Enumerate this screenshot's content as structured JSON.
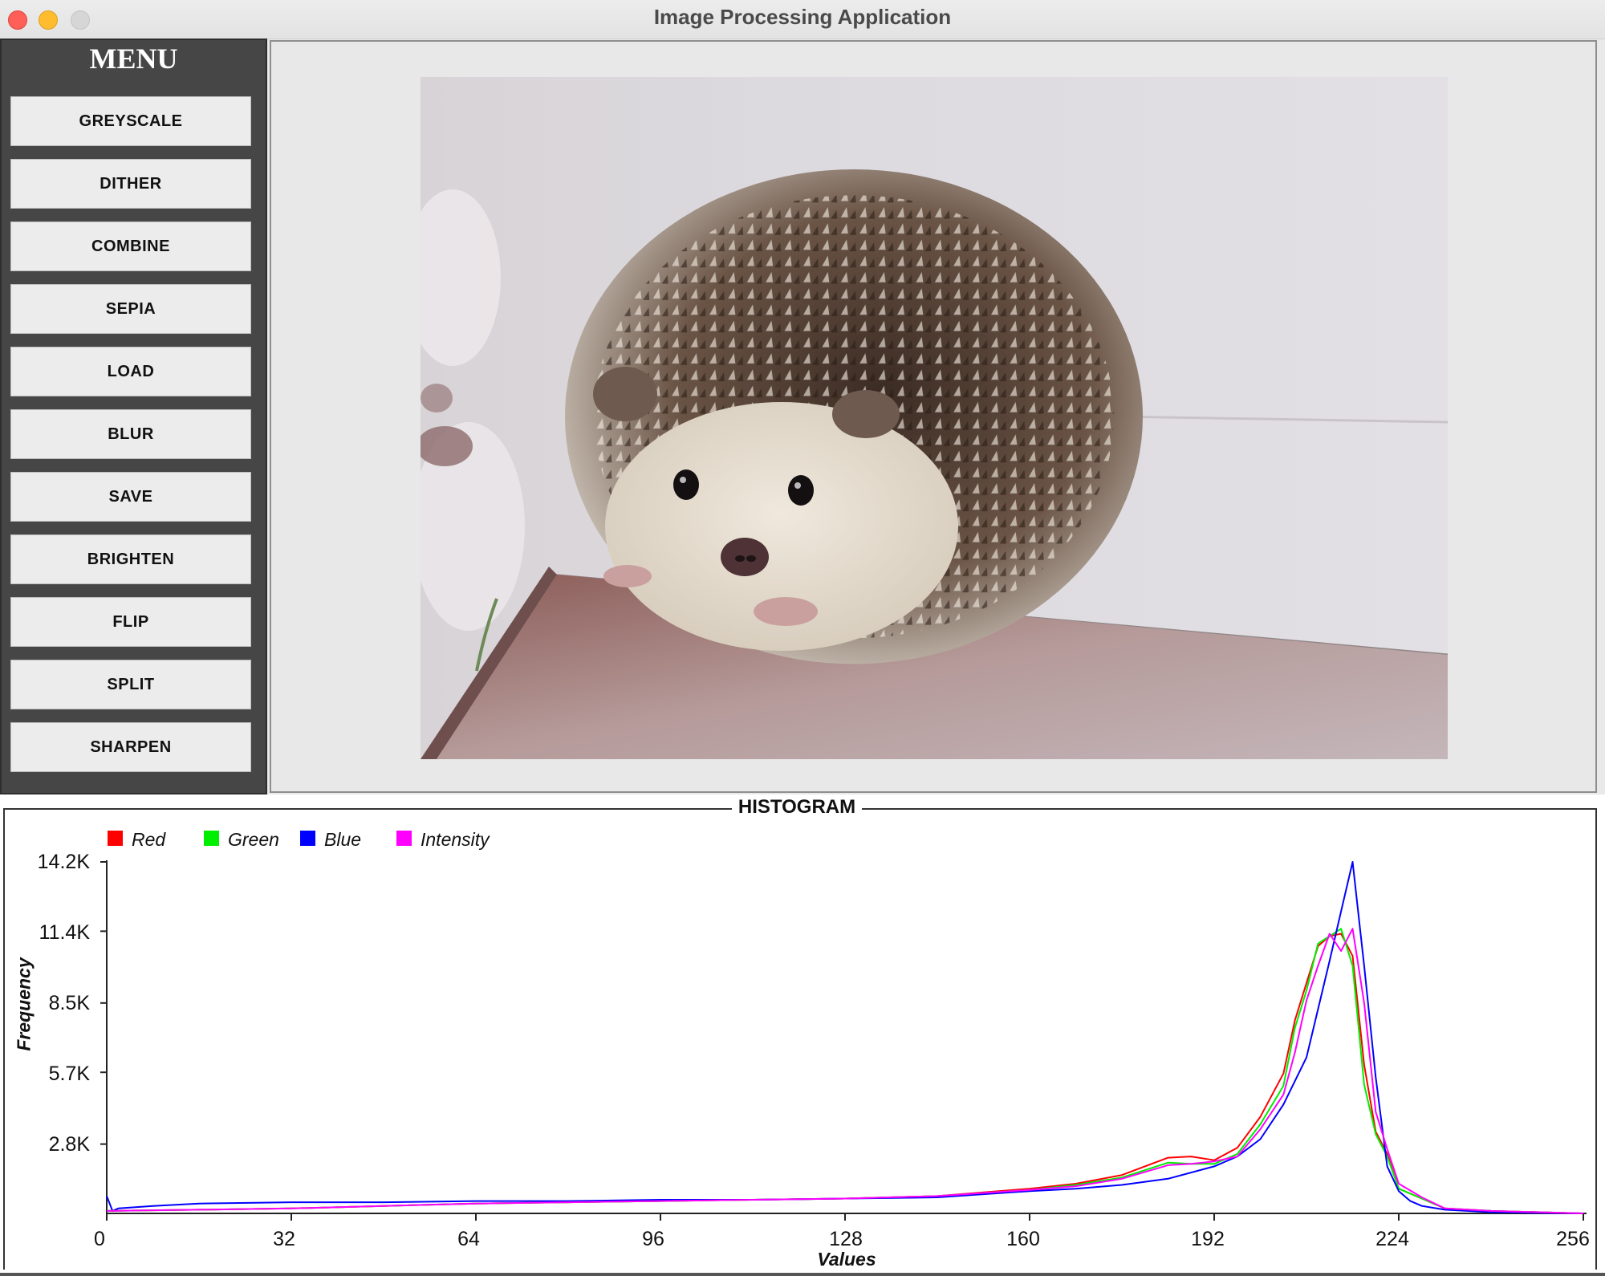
{
  "window": {
    "title": "Image Processing Application"
  },
  "menu": {
    "title": "MENU",
    "buttons": [
      "GREYSCALE",
      "DITHER",
      "COMBINE",
      "SEPIA",
      "LOAD",
      "BLUR",
      "SAVE",
      "BRIGHTEN",
      "FLIP",
      "SPLIT",
      "SHARPEN"
    ]
  },
  "histogram": {
    "title": "HISTOGRAM",
    "legend": [
      {
        "label": "Red",
        "color": "#ff0000"
      },
      {
        "label": "Green",
        "color": "#00ee00"
      },
      {
        "label": "Blue",
        "color": "#0000ff"
      },
      {
        "label": "Intensity",
        "color": "#ff00ff"
      }
    ],
    "yticks": [
      "14.2K",
      "11.4K",
      "8.5K",
      "5.7K",
      "2.8K"
    ],
    "xticks": [
      "0",
      "32",
      "64",
      "96",
      "128",
      "160",
      "192",
      "224",
      "256"
    ],
    "ylabel": "Frequency",
    "xlabel": "Values"
  },
  "chart_data": {
    "type": "line",
    "xlim": [
      0,
      256
    ],
    "ylim": [
      0,
      14200
    ],
    "series": [
      {
        "name": "Red",
        "color": "#ff0000",
        "x": [
          0,
          16,
          32,
          48,
          64,
          80,
          96,
          112,
          128,
          144,
          160,
          168,
          176,
          184,
          188,
          192,
          196,
          200,
          204,
          206,
          208,
          210,
          212,
          214,
          216,
          218,
          220,
          222,
          224,
          228,
          232,
          240,
          256
        ],
        "y": [
          100,
          150,
          200,
          300,
          400,
          450,
          500,
          550,
          600,
          700,
          1000,
          1200,
          1550,
          2250,
          2300,
          2150,
          2650,
          3900,
          5650,
          7800,
          9300,
          10800,
          11200,
          11300,
          10400,
          6000,
          3300,
          2400,
          1000,
          600,
          200,
          100,
          0
        ]
      },
      {
        "name": "Green",
        "color": "#00ee00",
        "x": [
          0,
          16,
          32,
          48,
          64,
          80,
          96,
          112,
          128,
          144,
          160,
          168,
          176,
          184,
          188,
          192,
          196,
          200,
          204,
          206,
          208,
          210,
          212,
          214,
          216,
          218,
          220,
          222,
          224,
          228,
          232,
          240,
          256
        ],
        "y": [
          100,
          150,
          200,
          300,
          400,
          450,
          500,
          550,
          600,
          700,
          950,
          1150,
          1450,
          2050,
          2000,
          2000,
          2400,
          3600,
          5150,
          7500,
          9000,
          10900,
          11200,
          11500,
          10000,
          5200,
          3200,
          2300,
          1000,
          600,
          200,
          100,
          0
        ]
      },
      {
        "name": "Blue",
        "color": "#0000ff",
        "x": [
          0,
          1,
          2,
          8,
          16,
          32,
          48,
          64,
          80,
          96,
          112,
          128,
          144,
          160,
          168,
          176,
          184,
          192,
          196,
          200,
          204,
          208,
          212,
          214,
          216,
          218,
          220,
          222,
          224,
          226,
          228,
          232,
          240,
          256
        ],
        "y": [
          700,
          100,
          200,
          300,
          400,
          450,
          450,
          500,
          500,
          550,
          550,
          600,
          650,
          900,
          1000,
          1150,
          1400,
          1900,
          2300,
          3000,
          4400,
          6300,
          10200,
          12200,
          14200,
          10000,
          5500,
          1900,
          900,
          500,
          300,
          150,
          50,
          0
        ]
      },
      {
        "name": "Intensity",
        "color": "#ff00ff",
        "x": [
          0,
          16,
          32,
          48,
          64,
          80,
          96,
          112,
          128,
          144,
          160,
          168,
          176,
          184,
          188,
          192,
          196,
          200,
          204,
          206,
          208,
          210,
          212,
          214,
          216,
          218,
          220,
          222,
          224,
          228,
          232,
          240,
          256
        ],
        "y": [
          100,
          150,
          200,
          300,
          400,
          450,
          500,
          550,
          600,
          700,
          950,
          1100,
          1400,
          1950,
          2000,
          2100,
          2300,
          3400,
          4800,
          6500,
          8600,
          10000,
          11300,
          10600,
          11500,
          8500,
          4100,
          2600,
          1200,
          650,
          200,
          100,
          0
        ]
      }
    ]
  }
}
